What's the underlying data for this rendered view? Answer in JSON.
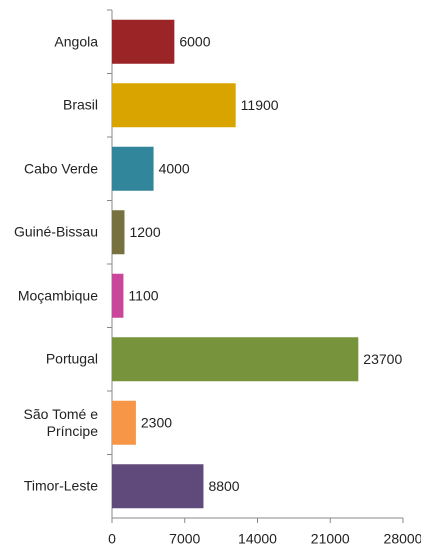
{
  "chart_data": {
    "type": "bar",
    "orientation": "horizontal",
    "categories": [
      "Angola",
      "Brasil",
      "Cabo Verde",
      "Guiné-Bissau",
      "Moçambique",
      "Portugal",
      "São Tomé e Príncipe",
      "Timor-Leste"
    ],
    "values": [
      6000,
      11900,
      4000,
      1200,
      1100,
      23700,
      2300,
      8800
    ],
    "colors": [
      "#9b2427",
      "#d9a400",
      "#31869b",
      "#77703f",
      "#c9469a",
      "#77933c",
      "#f79646",
      "#604a7b"
    ],
    "xlim": [
      0,
      28000
    ],
    "xticks": [
      0,
      7000,
      14000,
      21000,
      28000
    ]
  }
}
